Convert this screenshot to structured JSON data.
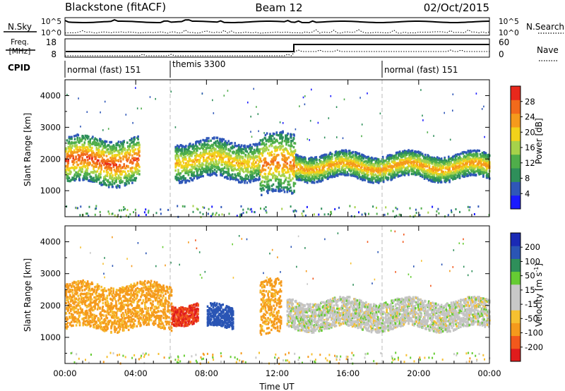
{
  "header": {
    "station": "Blackstone (fitACF)",
    "beam": "Beam 12",
    "date": "02/Oct/2015"
  },
  "noise_panel": {
    "left_label": "N.Sky",
    "left_ticks": [
      "10^5",
      "10^0"
    ],
    "right_ticks": [
      "10^5",
      "10^0"
    ],
    "right_label": "N.Search"
  },
  "freq_panel": {
    "left_label_1": "Freq.",
    "left_label_2": "[MHz]",
    "left_ticks": [
      "18",
      "8"
    ],
    "right_ticks": [
      "60",
      "0"
    ],
    "right_label": "Nave"
  },
  "cpid": {
    "label": "CPID",
    "segments": [
      {
        "start_h": 0,
        "end_h": 6,
        "text": "normal (fast) 151"
      },
      {
        "start_h": 6,
        "end_h": 18,
        "text": "themis 3300"
      },
      {
        "start_h": 18,
        "end_h": 24,
        "text": "normal (fast) 151"
      }
    ]
  },
  "colors": {
    "power_scale": [
      "#1a1aff",
      "#2f57b8",
      "#2e8f5a",
      "#4fae4a",
      "#a6d24a",
      "#f2d21a",
      "#f59a1c",
      "#f26a1b",
      "#e8281c"
    ],
    "velocity_scale": [
      "#e01c1c",
      "#f2581c",
      "#f59a1c",
      "#f6c030",
      "#c8c8c8",
      "#c8c8c8",
      "#66cc33",
      "#2e8f5a",
      "#2a55b5",
      "#1a2ab5"
    ],
    "ground_scatter": "#c4c4c4"
  },
  "chart_data": [
    {
      "type": "heatmap",
      "panel": "power",
      "xlabel": "Time UT",
      "ylabel": "Slant Range [km]",
      "x_range_hours": [
        0,
        24
      ],
      "x_tick_labels": [
        "00:00",
        "04:00",
        "08:00",
        "12:00",
        "16:00",
        "20:00",
        "00:00"
      ],
      "y_range_km": [
        180,
        4500
      ],
      "y_ticks": [
        1000,
        2000,
        3000,
        4000
      ],
      "colorbar": {
        "label": "Power [dB]",
        "ticks": [
          "28",
          "24",
          "20",
          "16",
          "12",
          "8",
          "4"
        ],
        "range": [
          0,
          32
        ]
      },
      "scatter_bands": [
        {
          "t0": 0,
          "t1": 4.2,
          "r0": 1250,
          "r1": 2700,
          "peak_db": 29
        },
        {
          "t0": 6.2,
          "t1": 11,
          "r0": 1400,
          "r1": 2600,
          "peak_db": 22
        },
        {
          "t0": 11,
          "t1": 13,
          "r0": 900,
          "r1": 2800,
          "peak_db": 26
        },
        {
          "t0": 13,
          "t1": 24,
          "r0": 1400,
          "r1": 2200,
          "peak_db": 24
        }
      ]
    },
    {
      "type": "heatmap",
      "panel": "velocity",
      "xlabel": "Time UT",
      "ylabel": "Slant Range [km]",
      "x_range_hours": [
        0,
        24
      ],
      "x_tick_labels": [
        "00:00",
        "04:00",
        "08:00",
        "12:00",
        "16:00",
        "20:00",
        "00:00"
      ],
      "y_range_km": [
        180,
        4500
      ],
      "y_ticks": [
        1000,
        2000,
        3000,
        4000
      ],
      "colorbar": {
        "label": "Velocity [m s^-1]",
        "ticks": [
          "200",
          "100",
          "50",
          "15",
          "-15",
          "-50",
          "-100",
          "-200"
        ],
        "range": [
          -250,
          250
        ]
      },
      "scatter_bands": [
        {
          "t0": 0,
          "t1": 6,
          "r0": 1300,
          "r1": 2700,
          "velocity": -60
        },
        {
          "t0": 6,
          "t1": 7.5,
          "r0": 1500,
          "r1": 2100,
          "velocity": -200
        },
        {
          "t0": 8,
          "t1": 9.5,
          "r0": 1300,
          "r1": 2000,
          "velocity": 150
        },
        {
          "t0": 11,
          "t1": 12.2,
          "r0": 1100,
          "r1": 2800,
          "velocity": -60
        },
        {
          "t0": 12.5,
          "t1": 24,
          "r0": 1300,
          "r1": 2200,
          "velocity": 0
        }
      ]
    }
  ]
}
